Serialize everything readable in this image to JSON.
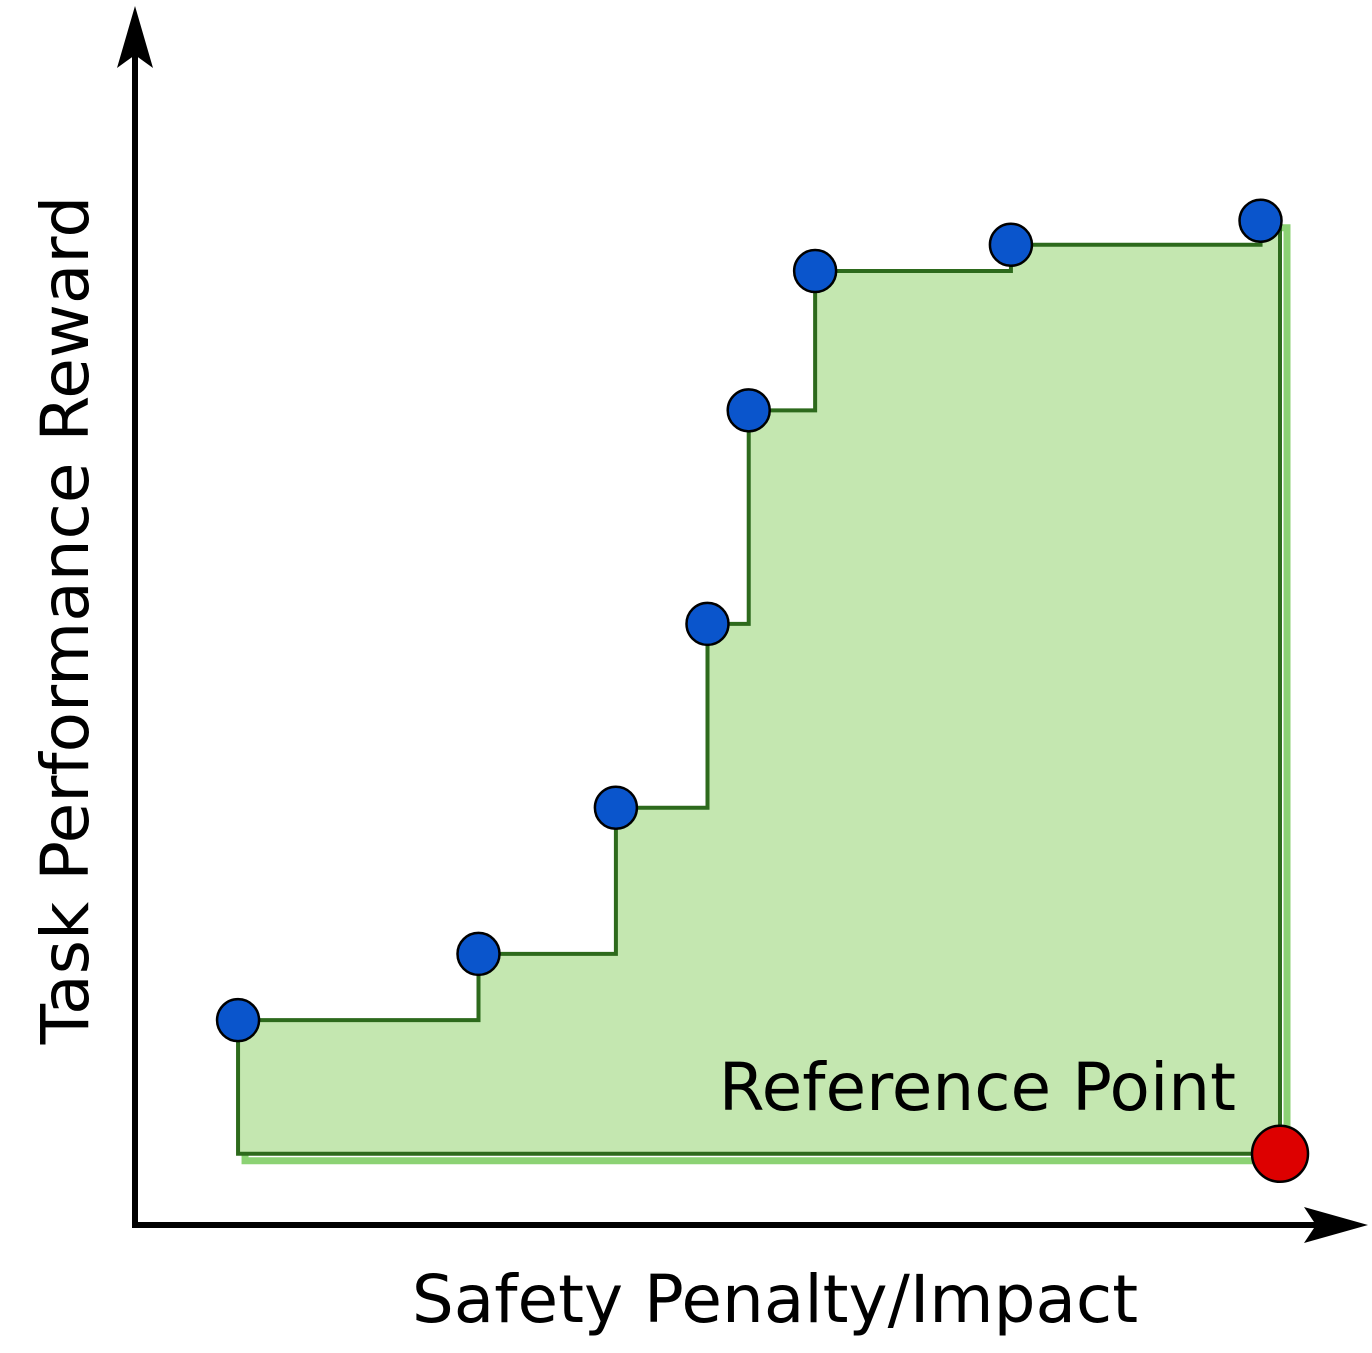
{
  "chart_data": {
    "type": "scatter",
    "title": "",
    "xlabel": "Safety Penalty/Impact",
    "ylabel": "Task Performance Reward",
    "xlim": [
      0,
      100
    ],
    "ylim": [
      0,
      100
    ],
    "grid": false,
    "axes_ticks": false,
    "pareto_points": {
      "x": [
        9,
        30,
        42,
        50,
        53.6,
        59.4,
        76.5,
        98.3
      ],
      "y": [
        18.2,
        24,
        36.8,
        52.9,
        71.6,
        83.8,
        86.1,
        88.2
      ],
      "color": "#0a55cc"
    },
    "reference_point": {
      "x": 100,
      "y": 6.5,
      "color": "#dd0000"
    },
    "dominated_region": {
      "fill_color": "#c4e7b0",
      "line_color": "#2d6a1c",
      "shadow_color": "#8cd274"
    },
    "annotations": [
      {
        "text": "Reference Point"
      }
    ]
  }
}
